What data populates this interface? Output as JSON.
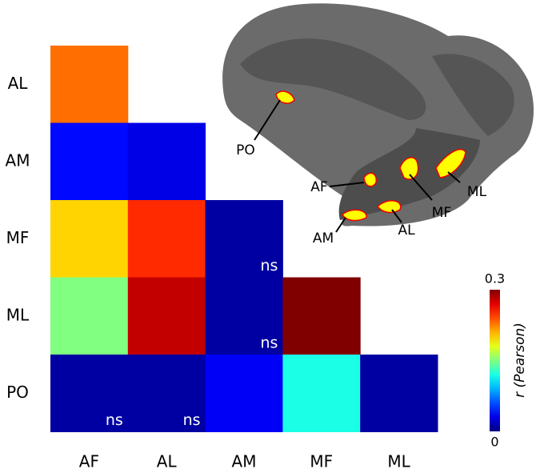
{
  "chart_data": {
    "type": "heatmap",
    "rows": [
      "AL",
      "AM",
      "MF",
      "ML",
      "PO"
    ],
    "columns": [
      "AF",
      "AL",
      "AM",
      "MF",
      "ML"
    ],
    "values": [
      [
        0.23,
        null,
        null,
        null,
        null
      ],
      [
        0.04,
        0.03,
        null,
        null,
        null
      ],
      [
        0.2,
        0.25,
        0.01,
        null,
        null
      ],
      [
        0.15,
        0.28,
        0.01,
        0.3,
        null
      ],
      [
        0.01,
        0.01,
        0.035,
        0.12,
        0.01
      ]
    ],
    "value_labels": [
      [
        null,
        null,
        null,
        null,
        null
      ],
      [
        null,
        null,
        null,
        null,
        null
      ],
      [
        null,
        null,
        "ns",
        null,
        null
      ],
      [
        null,
        null,
        "ns",
        null,
        null
      ],
      [
        "ns",
        "ns",
        null,
        null,
        null
      ]
    ],
    "colormap": "jet",
    "clim": [
      0,
      0.3
    ],
    "colorbar_ticks": [
      0,
      0.3
    ],
    "colorbar_label": "r (Pearson)"
  },
  "inset": {
    "labels": [
      "PO",
      "AF",
      "AM",
      "MF",
      "AL",
      "ML"
    ]
  }
}
